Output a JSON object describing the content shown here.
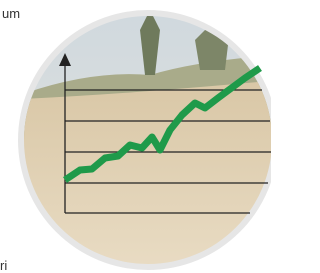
{
  "texts": {
    "top": "um",
    "bottom": "ri"
  }
}
